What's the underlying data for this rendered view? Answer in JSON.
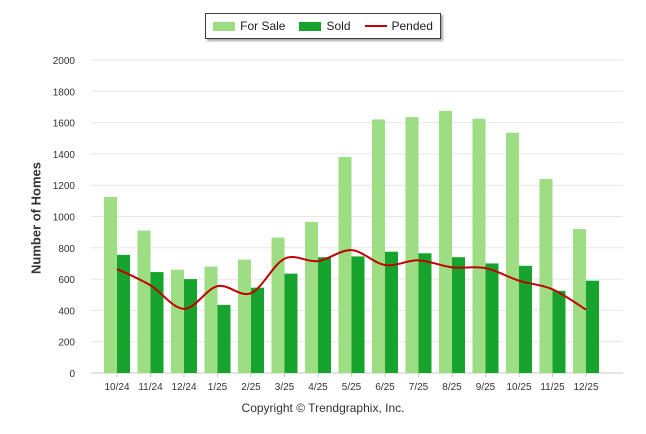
{
  "chart_data": {
    "type": "bar",
    "ylabel": "Number of Homes",
    "xlabel": "",
    "ylim": [
      0,
      2000
    ],
    "yticks": [
      0,
      200,
      400,
      600,
      800,
      1000,
      1200,
      1400,
      1600,
      1800,
      2000
    ],
    "categories": [
      "10/24",
      "11/24",
      "12/24",
      "1/25",
      "2/25",
      "3/25",
      "4/25",
      "5/25",
      "6/25",
      "7/25",
      "8/25",
      "9/25",
      "10/25",
      "11/25",
      "12/25"
    ],
    "series": [
      {
        "name": "For Sale",
        "type": "bar",
        "color": "#9dde84",
        "values": [
          1125,
          910,
          660,
          680,
          725,
          865,
          965,
          1380,
          1620,
          1635,
          1675,
          1625,
          1535,
          1240,
          920
        ]
      },
      {
        "name": "Sold",
        "type": "bar",
        "color": "#17a42e",
        "values": [
          755,
          645,
          600,
          435,
          545,
          635,
          740,
          745,
          775,
          765,
          740,
          700,
          685,
          525,
          590
        ]
      },
      {
        "name": "Pended",
        "type": "line",
        "color": "#c00000",
        "values": [
          665,
          560,
          410,
          555,
          510,
          730,
          715,
          785,
          690,
          720,
          675,
          670,
          590,
          535,
          405
        ]
      }
    ],
    "legend": "top-center",
    "grid": true
  },
  "footer": {
    "copyright": "Copyright © Trendgraphix, Inc."
  }
}
